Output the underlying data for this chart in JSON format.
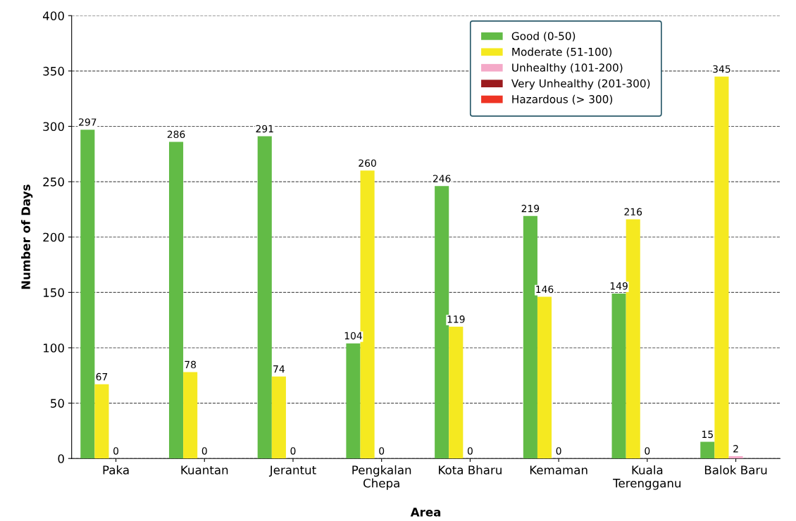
{
  "chart_data": {
    "type": "bar",
    "xlabel": "Area",
    "ylabel": "Number of Days",
    "categories": [
      "Paka",
      "Kuantan",
      "Jerantut",
      "Pengkalan\nChepa",
      "Kota Bharu",
      "Kemaman",
      "Kuala\nTerengganu",
      "Balok Baru"
    ],
    "series": [
      {
        "name": "Good (0-50)",
        "color": "#62bb46",
        "values": [
          297,
          286,
          291,
          104,
          246,
          219,
          149,
          15
        ],
        "value_labels": [
          "297",
          "286",
          "291",
          "104",
          "246",
          "219",
          "149",
          "15"
        ]
      },
      {
        "name": "Moderate (51-100)",
        "color": "#f5e920",
        "values": [
          67,
          78,
          74,
          260,
          119,
          146,
          216,
          345
        ],
        "value_labels": [
          "67",
          "78",
          "74",
          "260",
          "119",
          "146",
          "216",
          "345"
        ]
      },
      {
        "name": "Unhealthy (101-200)",
        "color": "#f4a9c8",
        "values": [
          0,
          0,
          0,
          0,
          0,
          0,
          0,
          2
        ],
        "value_labels": [
          "0",
          "0",
          "0",
          "0",
          "0",
          "0",
          "0",
          "2"
        ]
      },
      {
        "name": "Very Unhealthy (201-300)",
        "color": "#9b1b1e",
        "values": [
          null,
          null,
          null,
          null,
          null,
          null,
          null,
          null
        ]
      },
      {
        "name": "Hazardous (> 300)",
        "color": "#ee3424",
        "values": [
          null,
          null,
          null,
          null,
          null,
          null,
          null,
          null
        ]
      }
    ],
    "ylim": [
      0,
      400
    ],
    "yticks": [
      0,
      50,
      100,
      150,
      200,
      250,
      300,
      350,
      400
    ],
    "grid": "y",
    "legend": "top right"
  }
}
